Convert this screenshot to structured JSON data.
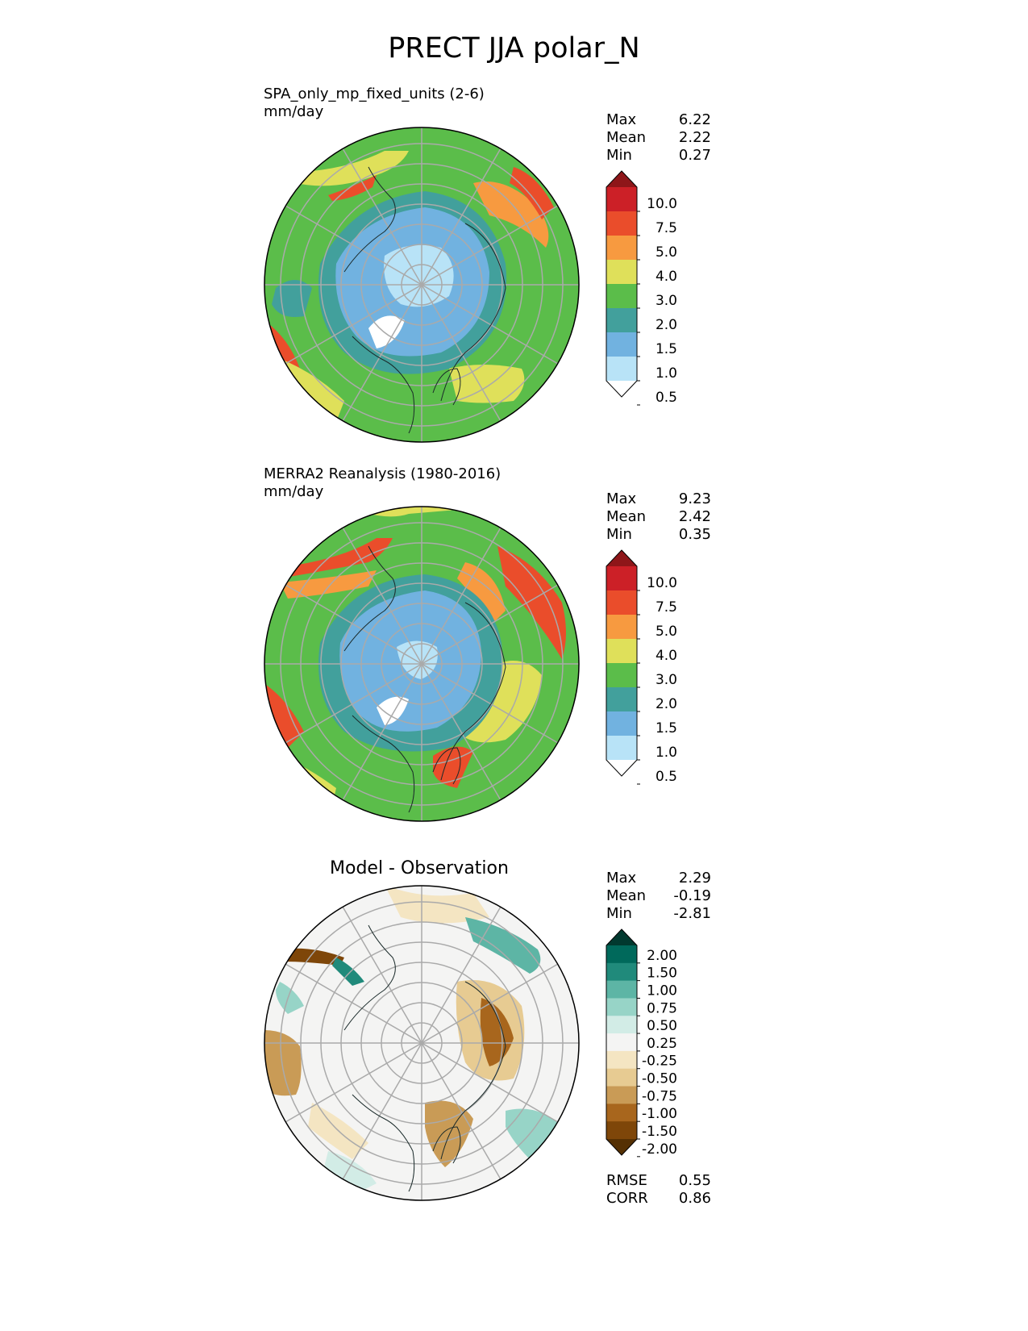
{
  "figure": {
    "title": "PRECT JJA polar_N"
  },
  "panels": [
    {
      "id": "model",
      "title_line1": "SPA_only_mp_fixed_units (2-6)",
      "title_line2": "mm/day",
      "stats": [
        {
          "label": "Max",
          "value": "6.22"
        },
        {
          "label": "Mean",
          "value": "2.22"
        },
        {
          "label": "Min",
          "value": "0.27"
        }
      ]
    },
    {
      "id": "obs",
      "title_line1": "MERRA2 Reanalysis (1980-2016)",
      "title_line2": "mm/day",
      "stats": [
        {
          "label": "Max",
          "value": "9.23"
        },
        {
          "label": "Mean",
          "value": "2.42"
        },
        {
          "label": "Min",
          "value": "0.35"
        }
      ]
    },
    {
      "id": "diff",
      "title_line1": "Model - Observation",
      "stats": [
        {
          "label": "Max",
          "value": "2.29"
        },
        {
          "label": "Mean",
          "value": "-0.19"
        },
        {
          "label": "Min",
          "value": "-2.81"
        }
      ],
      "metrics": [
        {
          "label": "RMSE",
          "value": "0.55"
        },
        {
          "label": "CORR",
          "value": "0.86"
        }
      ]
    }
  ],
  "colorbars": {
    "precip": {
      "levels": [
        "10.0",
        "7.5",
        "5.0",
        "4.0",
        "3.0",
        "2.0",
        "1.5",
        "1.0",
        "0.5"
      ],
      "colors": [
        "#8e1619",
        "#cc2027",
        "#ea4d2b",
        "#f79a40",
        "#dfe05a",
        "#5bbd4a",
        "#42a09c",
        "#71b2e0",
        "#b8e3f7",
        "#ffffff"
      ]
    },
    "diff": {
      "levels": [
        "2.00",
        "1.50",
        "1.00",
        "0.75",
        "0.50",
        "0.25",
        "-0.25",
        "-0.50",
        "-0.75",
        "-1.00",
        "-1.50",
        "-2.00"
      ],
      "colors": [
        "#01392f",
        "#00695b",
        "#208a7b",
        "#5db5a5",
        "#97d4c7",
        "#d2ece6",
        "#f4f4f3",
        "#f4e5c2",
        "#e7cb92",
        "#c99b56",
        "#a8661d",
        "#7e4609",
        "#553003"
      ]
    }
  },
  "map_colors": {
    "grid": "#aaaaaa",
    "coast": "#1a2a2a",
    "border": "#000000"
  }
}
